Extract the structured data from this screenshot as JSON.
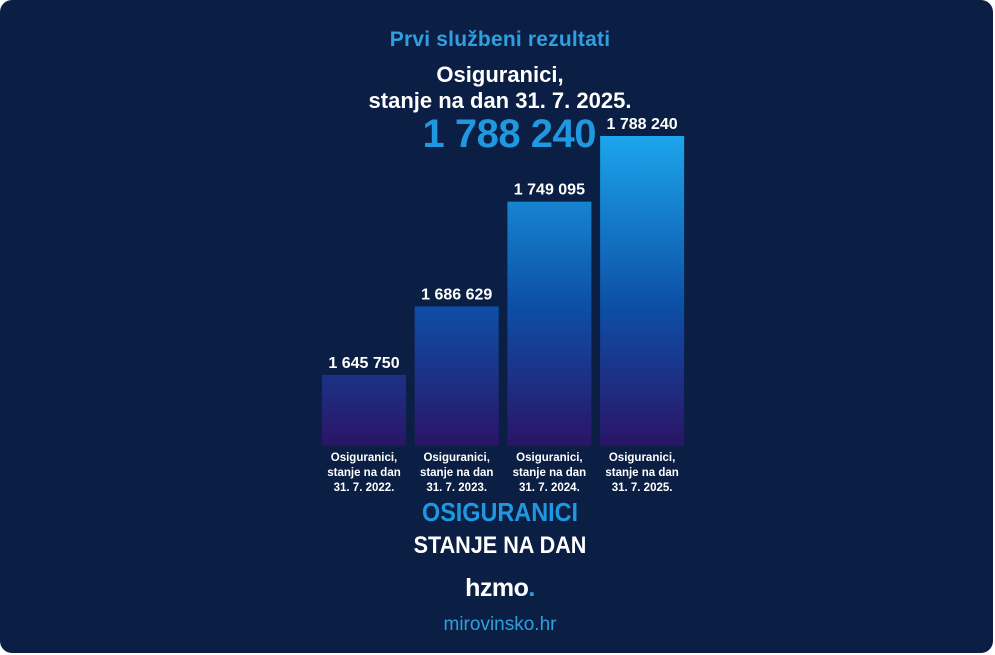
{
  "header": {
    "kicker": "Prvi službeni rezultati",
    "title_line1": "Osiguranici,",
    "title_line2": "stanje na dan 31. 7. 2025.",
    "headline_value": "1 788 240"
  },
  "chart_data": {
    "type": "bar",
    "categories": [
      [
        "Osiguranici,",
        "stanje na dan",
        "31. 7. 2022."
      ],
      [
        "Osiguranici,",
        "stanje na dan",
        "31. 7. 2023."
      ],
      [
        "Osiguranici,",
        "stanje na dan",
        "31. 7. 2024."
      ],
      [
        "Osiguranici,",
        "stanje na dan",
        "31. 7. 2025."
      ]
    ],
    "values": [
      1645750,
      1686629,
      1749095,
      1788240
    ],
    "value_labels": [
      "1 645 750",
      "1 686 629",
      "1 749 095",
      "1 788 240"
    ],
    "title": "Osiguranici, stanje na dan 31. 7. 2025.",
    "xlabel": "",
    "ylabel": "",
    "grid": false,
    "colors": {
      "bar_top": "#1ca6ec",
      "bar_mid": "#0d4fa6",
      "bar_bottom": "#2b1466"
    }
  },
  "footer": {
    "line1": "OSIGURANICI",
    "line2": "STANJE NA DAN",
    "logo_text": "hzmo",
    "logo_dot": ".",
    "website": "mirovinsko.hr"
  },
  "colors": {
    "background": "#0b1f44",
    "accent": "#1f98e1",
    "text": "#ffffff"
  }
}
